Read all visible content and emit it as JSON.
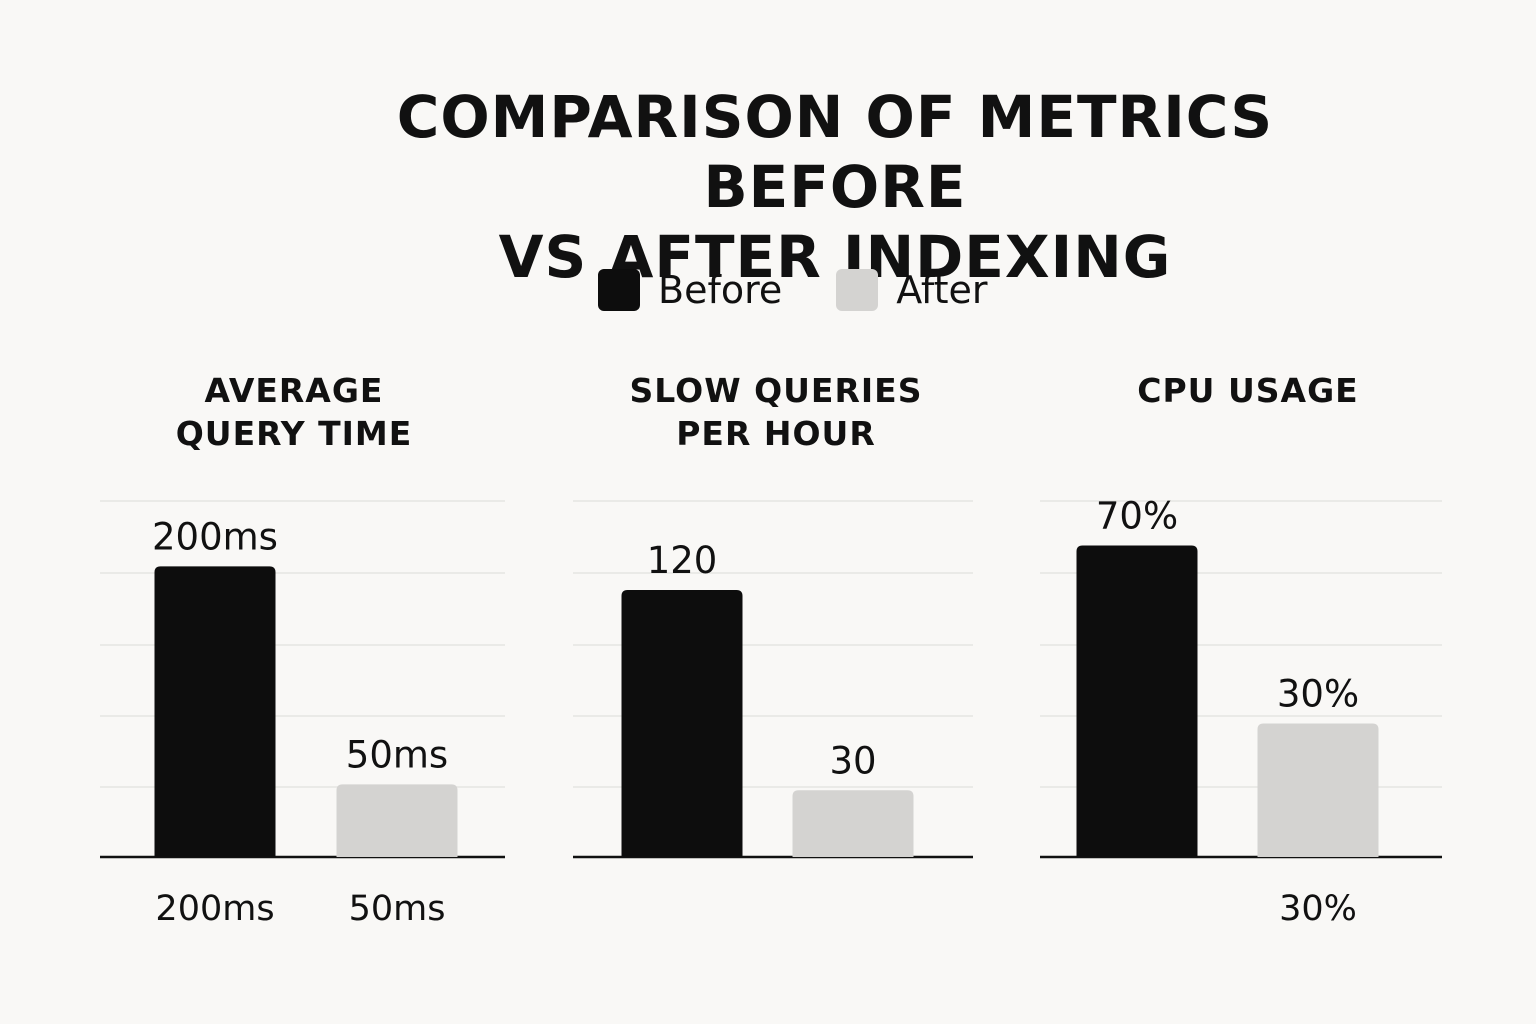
{
  "chart_data": {
    "type": "bar",
    "title_lines": [
      "COMPARISON OF METRICS BEFORE",
      "VS AFTER INDEXING"
    ],
    "legend": [
      {
        "label": "Before",
        "color": "#0d0d0d"
      },
      {
        "label": "After",
        "color": "#d4d3d1"
      }
    ],
    "legend_placement": "top-center",
    "grid": true,
    "panels": [
      {
        "title_lines": [
          "AVERAGE",
          "QUERY TIME"
        ],
        "values": [
          200,
          50
        ],
        "value_labels": [
          "200ms",
          "50ms"
        ],
        "category_labels": [
          "200ms",
          "50ms"
        ],
        "ylim": [
          0,
          245
        ]
      },
      {
        "title_lines": [
          "SLOW QUERIES",
          "PER HOUR"
        ],
        "values": [
          120,
          30
        ],
        "value_labels": [
          "120",
          "30"
        ],
        "category_labels": [
          "",
          ""
        ],
        "ylim": [
          0,
          160
        ]
      },
      {
        "title_lines": [
          "CPU USAGE"
        ],
        "values": [
          70,
          30
        ],
        "value_labels": [
          "70%",
          "30%"
        ],
        "category_labels": [
          "",
          "30%"
        ],
        "ylim": [
          0,
          80
        ]
      }
    ]
  }
}
